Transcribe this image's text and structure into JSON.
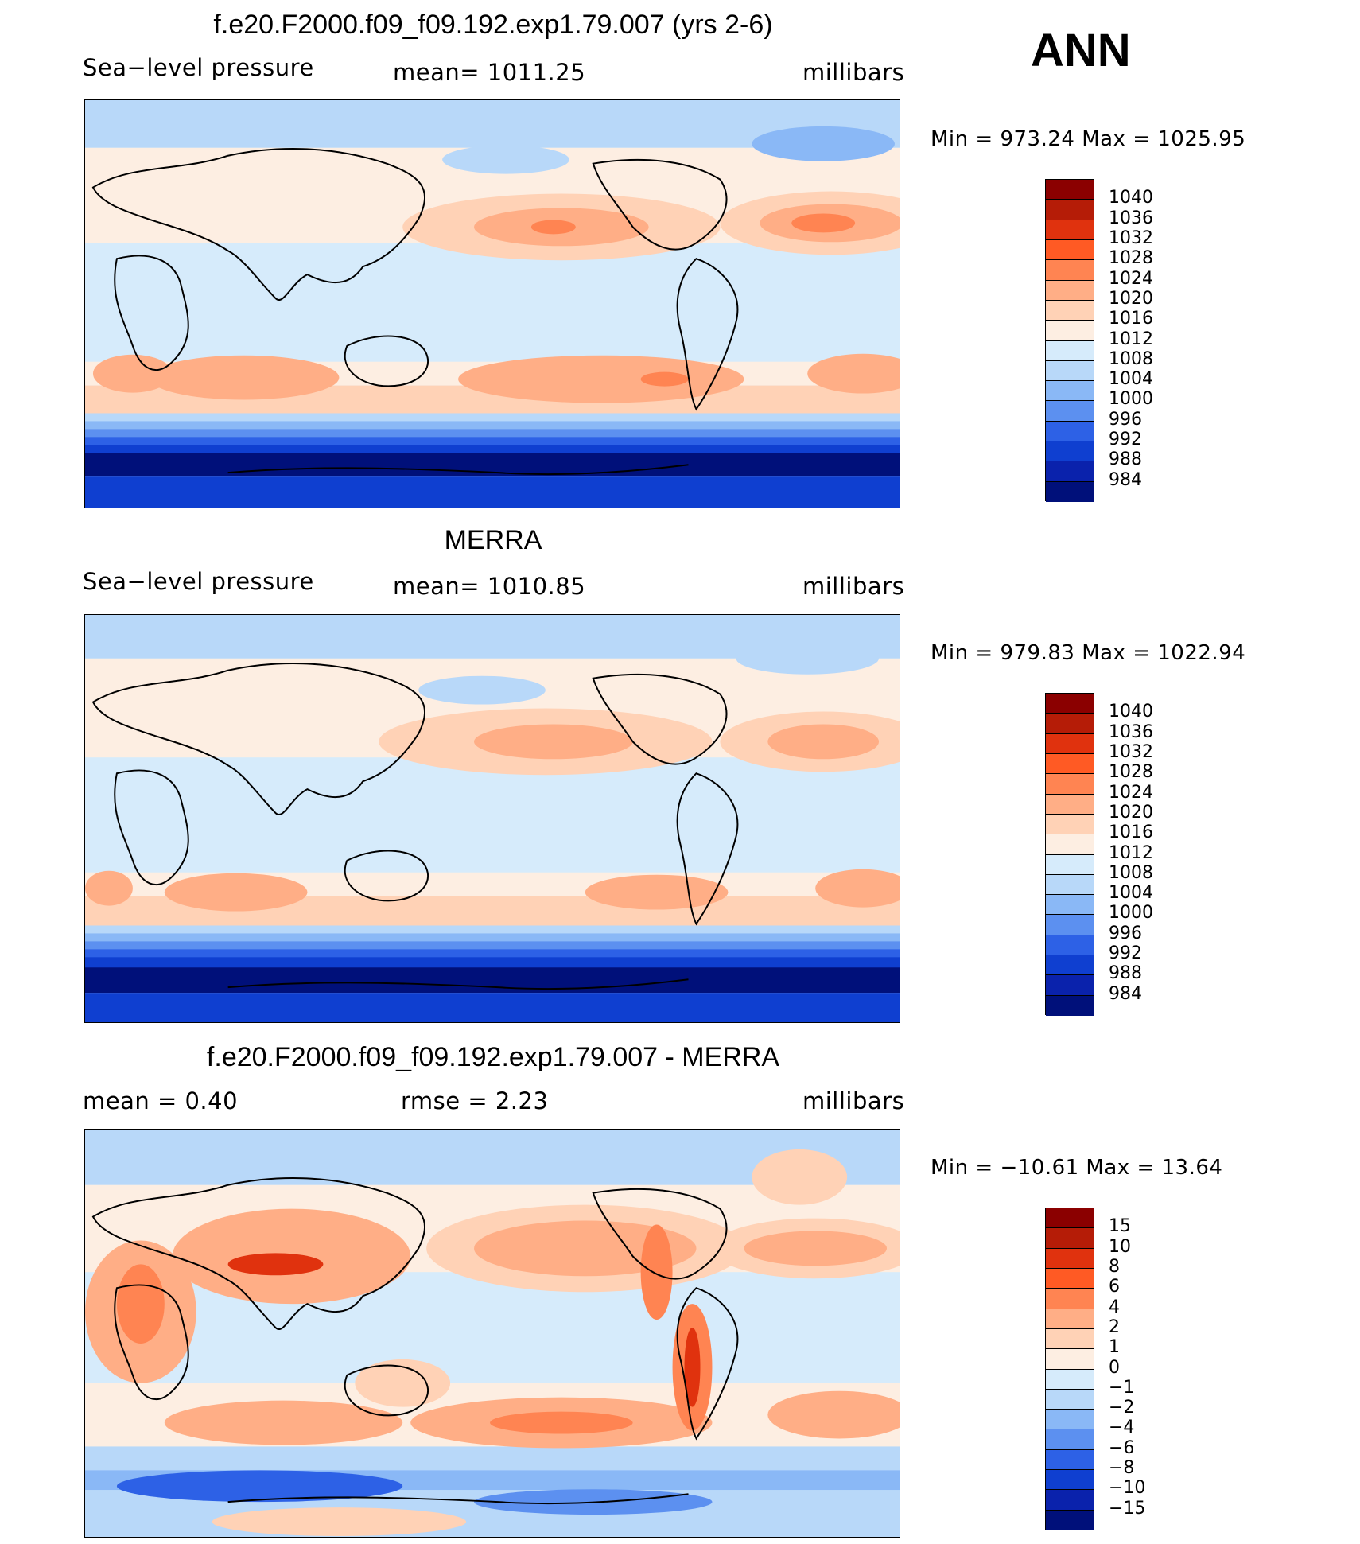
{
  "season": "ANN",
  "panels": [
    {
      "title": "f.e20.F2000.f09_f09.192.exp1.79.007 (yrs 2-6)",
      "left": "Sea−level  pressure",
      "middle": "mean=  1011.25",
      "right": "millibars",
      "minmax": "Min  =  973.24  Max  =  1025.95",
      "levels": [
        "1040",
        "1036",
        "1032",
        "1028",
        "1024",
        "1020",
        "1016",
        "1012",
        "1008",
        "1004",
        "1000",
        "996",
        "992",
        "988",
        "984"
      ],
      "colors": [
        "#8b0000",
        "#b51c07",
        "#e0320e",
        "#ff5a24",
        "#ff8452",
        "#ffae86",
        "#ffd2b6",
        "#fdeee2",
        "#d6ebfb",
        "#b8d8f9",
        "#8ab8f6",
        "#5c90f0",
        "#2d61e6",
        "#0f3fd0",
        "#0a22ac",
        "#00107a"
      ],
      "bands": [
        {
          "name": "arctic",
          "c": "#ffffff"
        }
      ]
    },
    {
      "title": "MERRA",
      "left": "Sea−level  pressure",
      "middle": "mean=  1010.85",
      "right": "millibars",
      "minmax": "Min  =  979.83  Max  =  1022.94",
      "levels": [
        "1040",
        "1036",
        "1032",
        "1028",
        "1024",
        "1020",
        "1016",
        "1012",
        "1008",
        "1004",
        "1000",
        "996",
        "992",
        "988",
        "984"
      ],
      "colors": [
        "#8b0000",
        "#b51c07",
        "#e0320e",
        "#ff5a24",
        "#ff8452",
        "#ffae86",
        "#ffd2b6",
        "#fdeee2",
        "#d6ebfb",
        "#b8d8f9",
        "#8ab8f6",
        "#5c90f0",
        "#2d61e6",
        "#0f3fd0",
        "#0a22ac",
        "#00107a"
      ]
    },
    {
      "title": "f.e20.F2000.f09_f09.192.exp1.79.007 - MERRA",
      "left": "mean  =     0.40",
      "middle": "rmse  =     2.23",
      "right": "millibars",
      "minmax": "Min  =  −10.61  Max  =    13.64",
      "levels": [
        "15",
        "10",
        "8",
        "6",
        "4",
        "2",
        "1",
        "0",
        "−1",
        "−2",
        "−4",
        "−6",
        "−8",
        "−10",
        "−15"
      ],
      "colors": [
        "#8b0000",
        "#b51c07",
        "#e0320e",
        "#ff5a24",
        "#ff8452",
        "#ffae86",
        "#ffd2b6",
        "#fdeee2",
        "#d6ebfb",
        "#b8d8f9",
        "#8ab8f6",
        "#5c90f0",
        "#2d61e6",
        "#0f3fd0",
        "#0a22ac",
        "#00107a"
      ]
    }
  ]
}
